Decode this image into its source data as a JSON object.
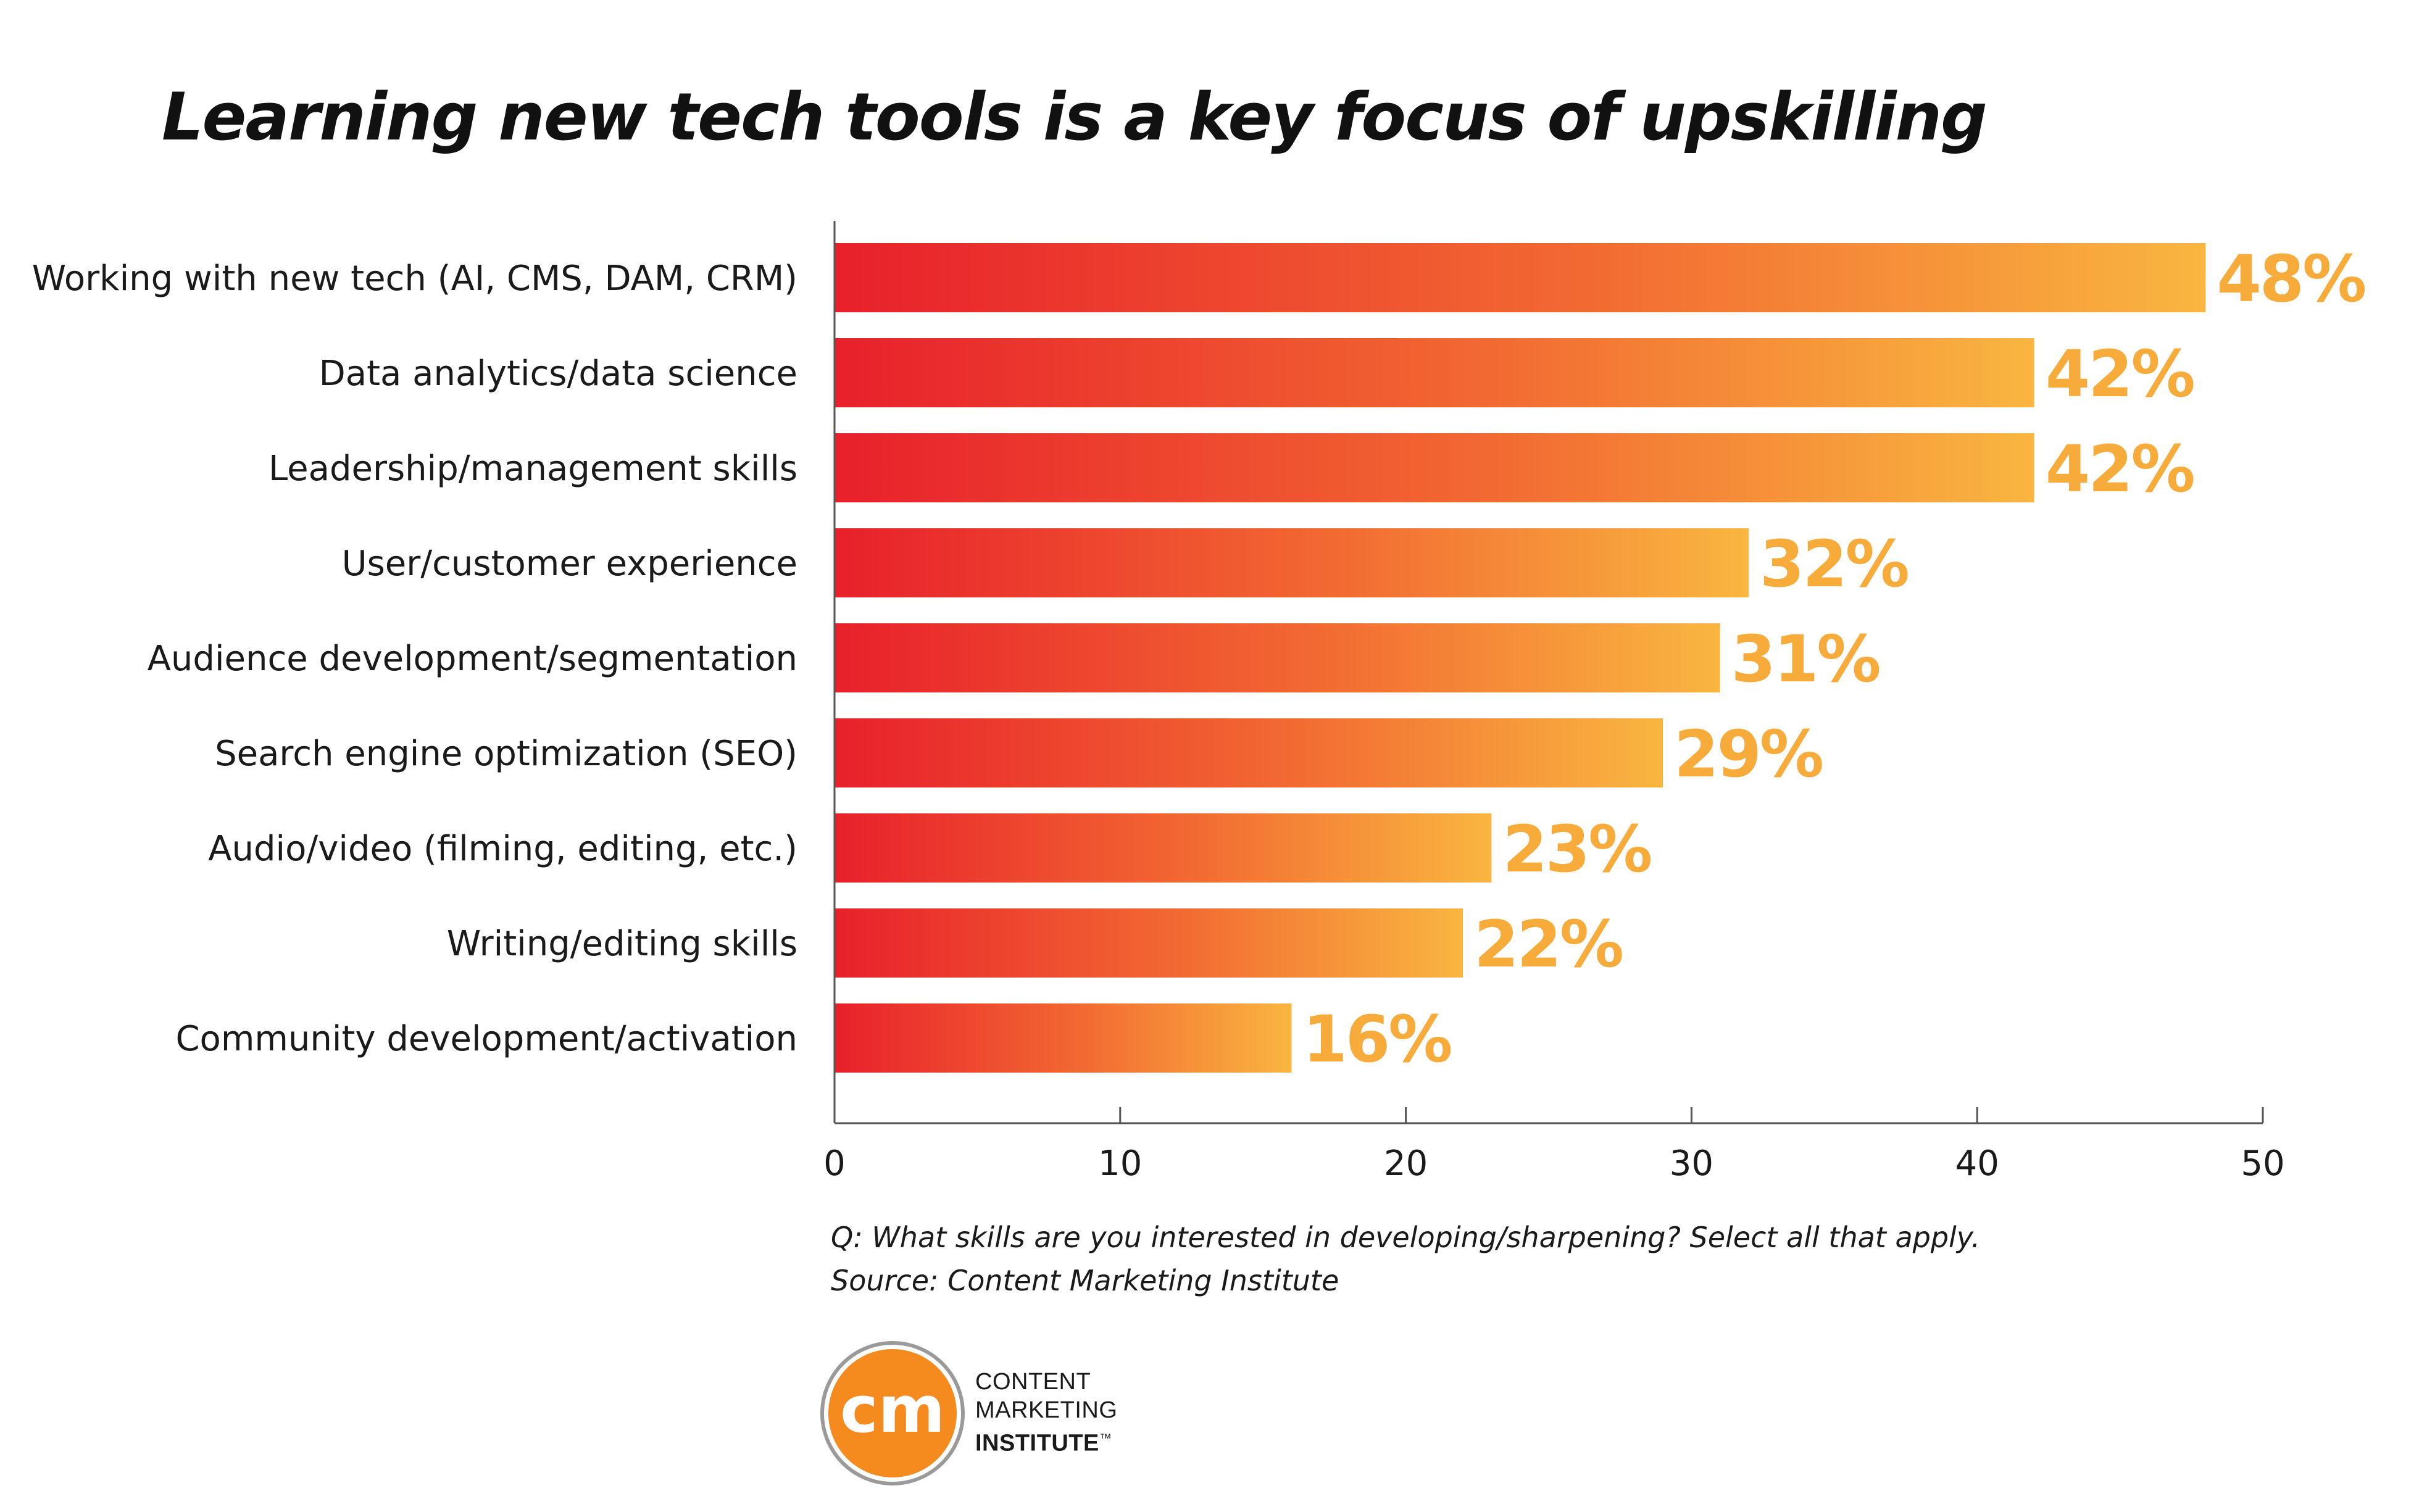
{
  "title": "Learning new tech tools is a key focus of upskilling",
  "colors": {
    "bar_start": "#e8202b",
    "bar_end": "#f9b640",
    "value_label": "#f7ab3b",
    "axis": "#555555",
    "logo_orange": "#f58a1f"
  },
  "chart_data": {
    "type": "bar",
    "orientation": "horizontal",
    "title": "Learning new tech tools is a key focus of upskilling",
    "categories": [
      "Working with new tech (AI, CMS, DAM, CRM)",
      "Data analytics/data science",
      "Leadership/management skills",
      "User/customer experience",
      "Audience development/segmentation",
      "Search engine optimization (SEO)",
      "Audio/video (filming, editing, etc.)",
      "Writing/editing skills",
      "Community development/activation"
    ],
    "values": [
      48,
      42,
      42,
      32,
      31,
      29,
      23,
      22,
      16
    ],
    "value_labels": [
      "48%",
      "42%",
      "42%",
      "32%",
      "31%",
      "29%",
      "23%",
      "22%",
      "16%"
    ],
    "xlim": [
      0,
      50
    ],
    "xticks": [
      0,
      10,
      20,
      30,
      40,
      50
    ],
    "xlabel": "",
    "ylabel": "",
    "grid": false,
    "legend": "none"
  },
  "footnote": {
    "question": "Q: What skills are you interested in developing/sharpening? Select all that apply.",
    "source": "Source: Content Marketing Institute"
  },
  "logo": {
    "monogram": "cm",
    "line1": "CONTENT",
    "line2": "MARKETING",
    "line3": "INSTITUTE",
    "trademark": "™"
  }
}
